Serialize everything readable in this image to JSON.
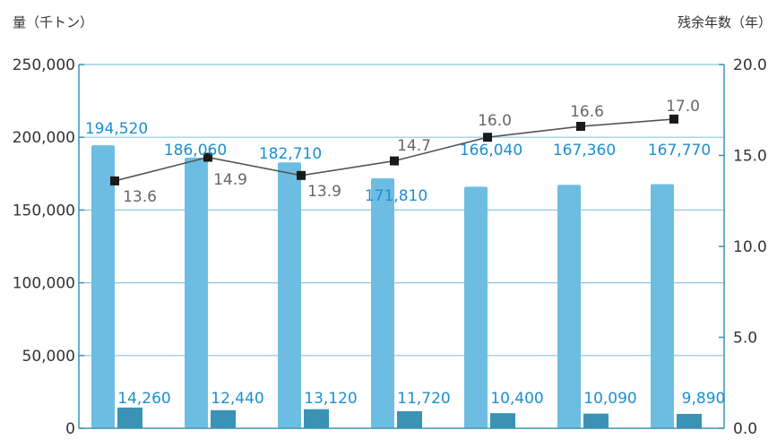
{
  "chart_data": {
    "type": "bar+line",
    "left_axis_label": "量（千トン）",
    "right_axis_label": "残余年数（年）",
    "y_left": {
      "min": 0,
      "max": 250000,
      "ticks": [
        0,
        50000,
        100000,
        150000,
        200000,
        250000
      ],
      "tick_labels": [
        "0",
        "50,000",
        "100,000",
        "150,000",
        "200,000",
        "250,000"
      ]
    },
    "y_right": {
      "min": 0,
      "max": 20,
      "ticks": [
        0,
        5,
        10,
        15,
        20
      ],
      "tick_labels": [
        "0.0",
        "5.0",
        "10.0",
        "15.0",
        "20.0"
      ]
    },
    "grid": true,
    "group_count": 7,
    "series": [
      {
        "kind": "bar",
        "color": "#6dbde3",
        "label_color": "#1a8fd1",
        "values": [
          194520,
          186060,
          182710,
          171810,
          166040,
          167360,
          167770
        ],
        "labels": [
          "194,520",
          "186,060",
          "182,710",
          "171,810",
          "166,040",
          "167,360",
          "167,770"
        ]
      },
      {
        "kind": "bar",
        "color": "#3a93b5",
        "label_color": "#1a8fd1",
        "values": [
          14260,
          12440,
          13120,
          11720,
          10400,
          10090,
          9890
        ],
        "labels": [
          "14,260",
          "12,440",
          "13,120",
          "11,720",
          "10,400",
          "10,090",
          "9,890"
        ]
      },
      {
        "kind": "line",
        "axis": "right",
        "color": "#555555",
        "marker_color": "#1a1a1a",
        "label_color": "#666666",
        "values": [
          13.6,
          14.9,
          13.9,
          14.7,
          16.0,
          16.6,
          17.0
        ],
        "labels": [
          "13.6",
          "14.9",
          "13.9",
          "14.7",
          "16.0",
          "16.6",
          "17.0"
        ]
      }
    ],
    "colors": {
      "axis": "#3a93b5",
      "grid": "#8ec8de",
      "tick_text": "#333333"
    }
  }
}
